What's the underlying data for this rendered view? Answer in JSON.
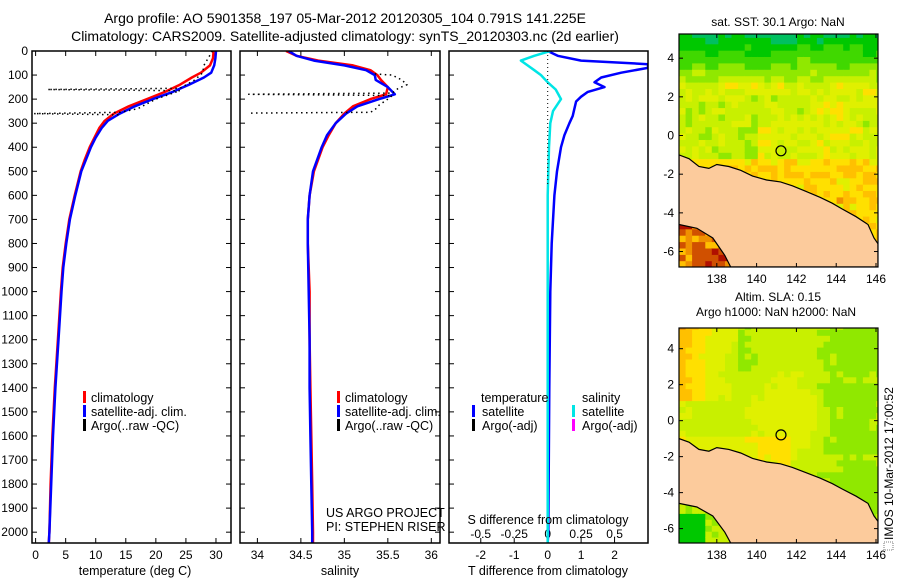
{
  "title": {
    "line1": "Argo profile: AO 5901358_197 05-Mar-2012 20120305_104 0.791S 141.225E",
    "line2": "Climatology: CARS2009. Satellite-adjusted climatology: synTS_20120303.nc (2d earlier)"
  },
  "credits": {
    "project": "US ARGO PROJECT",
    "pi": "PI: STEPHEN RISER"
  },
  "stamp": "IMOS 10-Mar-2012 17:00:52",
  "colors": {
    "climatology": "#ff0000",
    "satellite": "#0000ff",
    "argo": "#000000",
    "sal_satellite": "#00e5e5",
    "sal_argo": "#ff00ff",
    "land": "#fccb9c"
  },
  "depth_axis": {
    "ticks": [
      0,
      100,
      200,
      300,
      400,
      500,
      600,
      700,
      800,
      900,
      1000,
      1100,
      1200,
      1300,
      1400,
      1500,
      1600,
      1700,
      1800,
      1900,
      2000
    ],
    "ylim": [
      0,
      2045
    ]
  },
  "chart_data": [
    {
      "type": "line",
      "id": "temperature",
      "xlabel": "temperature (deg C)",
      "ylabel": "depth",
      "xlim": [
        -0.6,
        32.5
      ],
      "xticks": [
        "0",
        "5",
        "10",
        "15",
        "20",
        "25",
        "30"
      ],
      "legend": [
        "climatology",
        "satellite-adj. clim.",
        "Argo(..raw -QC)"
      ],
      "series": [
        {
          "name": "climatology",
          "depth": [
            0,
            30,
            60,
            90,
            110,
            140,
            170,
            200,
            230,
            260,
            290,
            320,
            360,
            400,
            450,
            500,
            600,
            700,
            800,
            900,
            1000,
            1200,
            1400,
            1600,
            1800,
            2000,
            2045
          ],
          "values": [
            29.6,
            29.5,
            29.0,
            27.5,
            26.0,
            24.0,
            21.5,
            18.5,
            15.5,
            13.0,
            11.5,
            10.6,
            9.8,
            9.0,
            8.2,
            7.5,
            6.5,
            5.6,
            5.0,
            4.5,
            4.2,
            3.7,
            3.2,
            2.8,
            2.5,
            2.3,
            2.2
          ]
        },
        {
          "name": "satellite-adj. clim.",
          "depth": [
            0,
            30,
            60,
            90,
            110,
            140,
            170,
            200,
            230,
            260,
            290,
            320,
            360,
            400,
            450,
            500,
            600,
            700,
            800,
            900,
            1000,
            1200,
            1400,
            1600,
            1800,
            2000,
            2045
          ],
          "values": [
            30.0,
            29.9,
            29.7,
            29.2,
            28.0,
            25.5,
            22.8,
            19.5,
            16.5,
            14.0,
            12.0,
            11.0,
            10.0,
            9.2,
            8.4,
            7.6,
            6.6,
            5.7,
            5.1,
            4.6,
            4.3,
            3.8,
            3.3,
            2.9,
            2.6,
            2.3,
            2.2
          ]
        },
        {
          "name": "Argo(..raw -QC)",
          "depth": [
            0,
            60,
            90,
            120,
            155,
            160,
            165,
            200,
            240,
            255,
            260,
            265
          ],
          "values": [
            29.4,
            28.0,
            27.8,
            26.5,
            24.0,
            2.0,
            24.0,
            20.0,
            17.0,
            14.0,
            -0.3,
            14.0
          ]
        }
      ]
    },
    {
      "type": "line",
      "id": "salinity",
      "xlabel": "salinity",
      "ylabel": "depth",
      "xlim": [
        33.8,
        36.1
      ],
      "xticks": [
        "34",
        "34.5",
        "35",
        "35.5",
        "36"
      ],
      "legend": [
        "climatology",
        "satellite-adj. clim.",
        "Argo(..raw -QC)"
      ],
      "series": [
        {
          "name": "climatology",
          "depth": [
            0,
            20,
            40,
            60,
            80,
            100,
            120,
            150,
            180,
            200,
            230,
            260,
            300,
            350,
            400,
            500,
            600,
            700,
            800,
            1000,
            1200,
            1400,
            1600,
            1800,
            2000,
            2045
          ],
          "values": [
            34.33,
            34.45,
            34.7,
            35.1,
            35.3,
            35.38,
            35.42,
            35.5,
            35.48,
            35.3,
            35.1,
            35.0,
            34.9,
            34.82,
            34.75,
            34.65,
            34.6,
            34.58,
            34.58,
            34.6,
            34.6,
            34.61,
            34.62,
            34.63,
            34.64,
            34.64
          ]
        },
        {
          "name": "satellite-adj. clim.",
          "depth": [
            0,
            20,
            40,
            60,
            80,
            100,
            120,
            150,
            180,
            200,
            230,
            260,
            300,
            350,
            400,
            500,
            600,
            700,
            800,
            1000,
            1200,
            1400,
            1600,
            1800,
            2000,
            2045
          ],
          "values": [
            34.36,
            34.45,
            34.65,
            35.0,
            35.25,
            35.35,
            35.36,
            35.5,
            35.58,
            35.4,
            35.15,
            35.02,
            34.9,
            34.8,
            34.74,
            34.64,
            34.6,
            34.58,
            34.58,
            34.59,
            34.6,
            34.6,
            34.61,
            34.62,
            34.63,
            34.63
          ]
        },
        {
          "name": "Argo(..raw -QC)",
          "depth": [
            95,
            100,
            120,
            140,
            155,
            175,
            180,
            185,
            200,
            225,
            245,
            255,
            258
          ],
          "values": [
            35.35,
            35.55,
            35.66,
            35.72,
            35.62,
            35.55,
            33.9,
            35.55,
            35.5,
            35.4,
            35.35,
            35.3,
            33.9
          ]
        }
      ]
    },
    {
      "type": "line",
      "id": "difference",
      "xlabel": "T difference from climatology",
      "x2label": "S difference from climatology",
      "xlim": [
        -2.95,
        3.0
      ],
      "x2lim": [
        -0.7375,
        0.75
      ],
      "xticks": [
        "-2",
        "-1",
        "0",
        "1",
        "2"
      ],
      "x2ticks": [
        "-0.5",
        "-0.25",
        "0",
        "0.25",
        "0.5"
      ],
      "legend": {
        "temperature_title": "temperature",
        "salinity_title": "salinity",
        "items": [
          "satellite",
          "Argo(-adj)",
          "satellite",
          "Argo(-adj)"
        ]
      },
      "series": [
        {
          "name": "temperature satellite",
          "depth": [
            0,
            20,
            40,
            55,
            70,
            90,
            110,
            130,
            150,
            170,
            190,
            210,
            240,
            270,
            300,
            350,
            400,
            500,
            600,
            800,
            1000,
            1400,
            2000,
            2045
          ],
          "values": [
            0.0,
            0.3,
            1.0,
            3.0,
            3.0,
            2.2,
            1.6,
            1.4,
            1.7,
            1.2,
            1.0,
            0.85,
            0.8,
            0.75,
            0.65,
            0.5,
            0.4,
            0.28,
            0.2,
            0.12,
            0.08,
            0.05,
            0.02,
            0.0
          ]
        },
        {
          "name": "salinity satellite",
          "depth": [
            0,
            20,
            40,
            60,
            80,
            100,
            130,
            160,
            200,
            250,
            300,
            400,
            600,
            1000,
            1500,
            2045
          ],
          "values": [
            0.02,
            -0.1,
            -0.2,
            -0.15,
            -0.1,
            -0.05,
            0.0,
            0.06,
            0.1,
            0.04,
            0.02,
            0.01,
            0.0,
            0.0,
            0.0,
            0.0
          ]
        },
        {
          "name": "Argo zero",
          "depth": [
            0,
            560
          ],
          "values": [
            0,
            0
          ]
        }
      ]
    },
    {
      "type": "heatmap",
      "id": "sst_map",
      "title": "sat. SST: 30.1  Argo: NaN",
      "xlim": [
        136.1,
        146.1
      ],
      "ylim": [
        -6.8,
        5.25
      ],
      "xticks": [
        "138",
        "140",
        "142",
        "144",
        "146"
      ],
      "yticks": [
        "-6",
        "-4",
        "-2",
        "0",
        "2",
        "4"
      ],
      "argo_position": {
        "lon": 141.225,
        "lat": -0.791
      }
    },
    {
      "type": "heatmap",
      "id": "sla_map",
      "title": "Altim. SLA: 0.15",
      "subtitle": "Argo h1000: NaN h2000: NaN",
      "xlim": [
        136.1,
        146.1
      ],
      "ylim": [
        -6.8,
        5.25
      ],
      "xticks": [
        "138",
        "140",
        "142",
        "144",
        "146"
      ],
      "yticks": [
        "-6",
        "-4",
        "-2",
        "0",
        "2",
        "4"
      ],
      "argo_position": {
        "lon": 141.225,
        "lat": -0.791
      }
    }
  ]
}
